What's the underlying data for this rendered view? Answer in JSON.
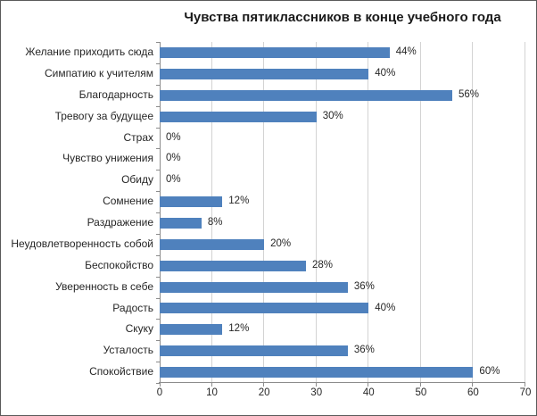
{
  "chart_data": {
    "type": "bar",
    "orientation": "horizontal",
    "title": "Чувства пятиклассников в конце учебного года",
    "categories": [
      "Желание приходить сюда",
      "Симпатию к учителям",
      "Благодарность",
      "Тревогу за будущее",
      "Страх",
      "Чувство унижения",
      "Обиду",
      "Сомнение",
      "Раздражение",
      "Неудовлетворенность собой",
      "Беспокойство",
      "Уверенность в себе",
      "Радость",
      "Скуку",
      "Усталость",
      "Спокойствие"
    ],
    "values": [
      44,
      40,
      56,
      30,
      0,
      0,
      0,
      12,
      8,
      20,
      28,
      36,
      40,
      12,
      36,
      60
    ],
    "value_labels": [
      "44%",
      "40%",
      "56%",
      "30%",
      "0%",
      "0%",
      "0%",
      "12%",
      "8%",
      "20%",
      "28%",
      "36%",
      "40%",
      "12%",
      "36%",
      "60%"
    ],
    "xlabel": "",
    "ylabel": "",
    "xlim": [
      0,
      70
    ],
    "x_ticks": [
      0,
      10,
      20,
      30,
      40,
      50,
      60,
      70
    ],
    "grid": true,
    "legend": false,
    "bar_color": "#4F81BD",
    "gridline_color": "#D3D3D3",
    "axis_color": "#8C8C8C",
    "text_color": "#262626"
  }
}
